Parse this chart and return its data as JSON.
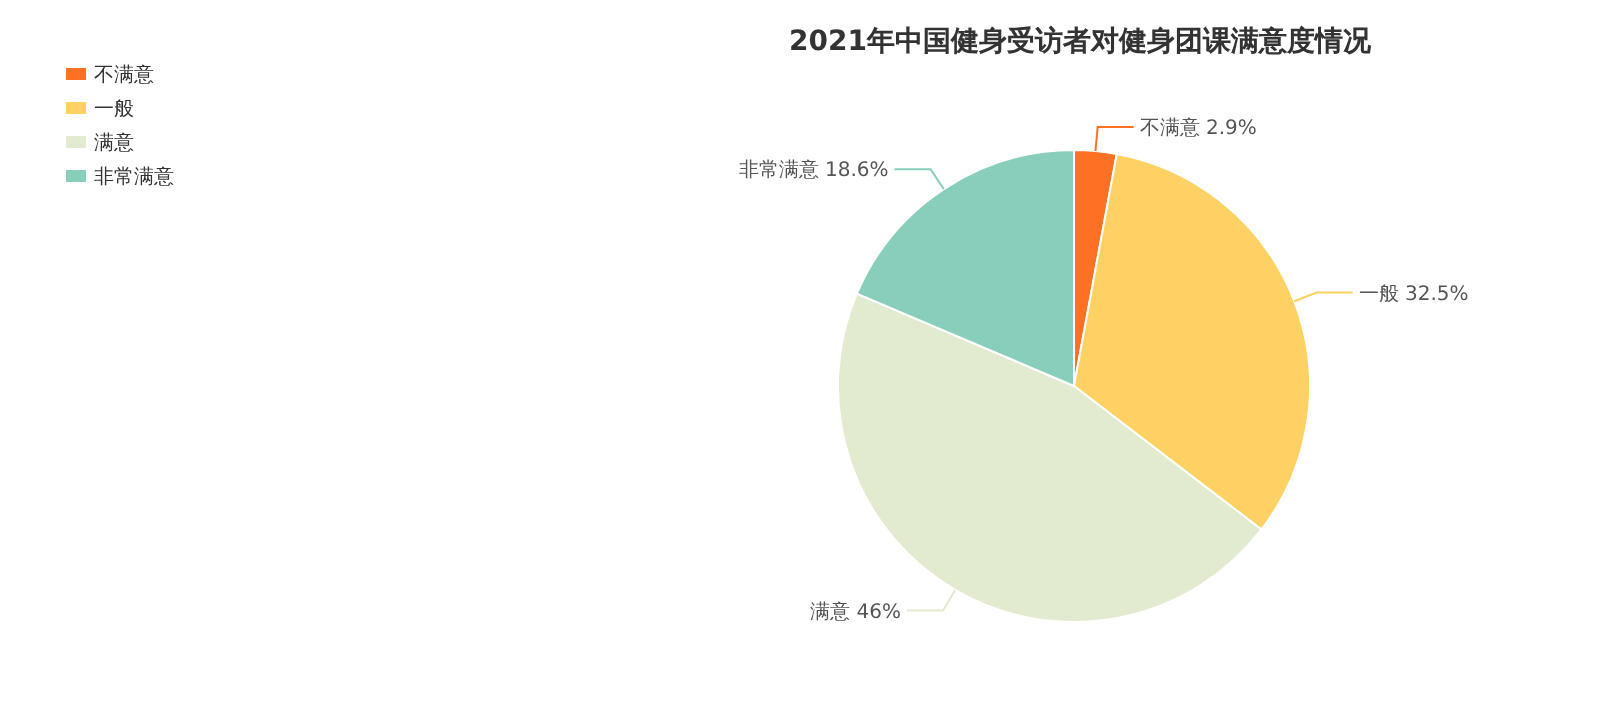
{
  "chart_data": {
    "type": "pie",
    "title": "2021年中国健身受访者对健身团课满意度情况",
    "categories": [
      "不满意",
      "一般",
      "满意",
      "非常满意"
    ],
    "values": [
      2.9,
      32.5,
      46,
      18.6
    ],
    "colors": [
      "#fc7123",
      "#fed164",
      "#e2eacf",
      "#89cebb"
    ],
    "value_labels": [
      "2.9%",
      "32.5%",
      "46%",
      "18.6%"
    ],
    "legend": "top left"
  }
}
